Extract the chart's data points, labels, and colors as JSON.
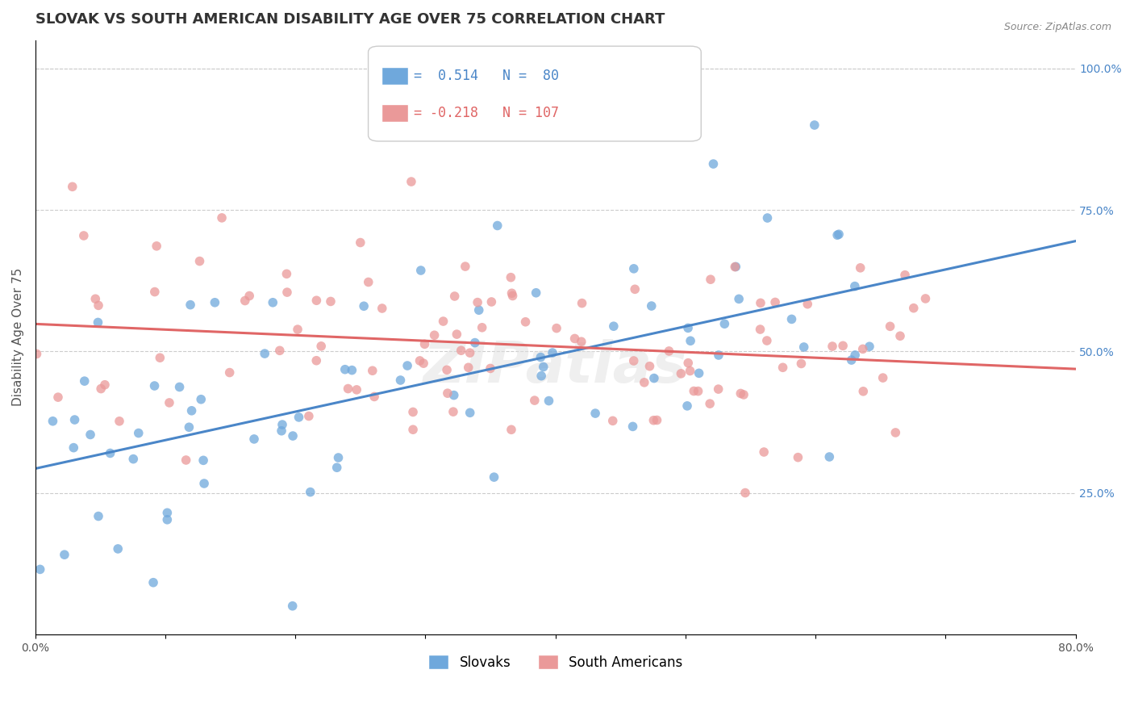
{
  "title": "SLOVAK VS SOUTH AMERICAN DISABILITY AGE OVER 75 CORRELATION CHART",
  "source_text": "Source: ZipAtlas.com",
  "xlabel": "",
  "ylabel": "Disability Age Over 75",
  "xmin": 0.0,
  "xmax": 0.8,
  "ymin": 0.0,
  "ymax": 1.05,
  "x_ticks": [
    0.0,
    0.1,
    0.2,
    0.3,
    0.4,
    0.5,
    0.6,
    0.7,
    0.8
  ],
  "x_tick_labels": [
    "0.0%",
    "",
    "",
    "",
    "",
    "",
    "",
    "",
    "80.0%"
  ],
  "y_ticks_right": [
    0.25,
    0.5,
    0.75,
    1.0
  ],
  "y_tick_labels_right": [
    "25.0%",
    "50.0%",
    "75.0%",
    "100.0%"
  ],
  "blue_color": "#6fa8dc",
  "pink_color": "#ea9999",
  "blue_line_color": "#4a86c8",
  "pink_line_color": "#e06666",
  "blue_R": 0.514,
  "blue_N": 80,
  "pink_R": -0.218,
  "pink_N": 107,
  "legend_label_blue": "Slovaks",
  "legend_label_pink": "South Americans",
  "watermark": "ZIPatlas",
  "title_fontsize": 13,
  "axis_label_fontsize": 11,
  "tick_fontsize": 10,
  "legend_fontsize": 12,
  "seed_blue": 42,
  "seed_pink": 7
}
